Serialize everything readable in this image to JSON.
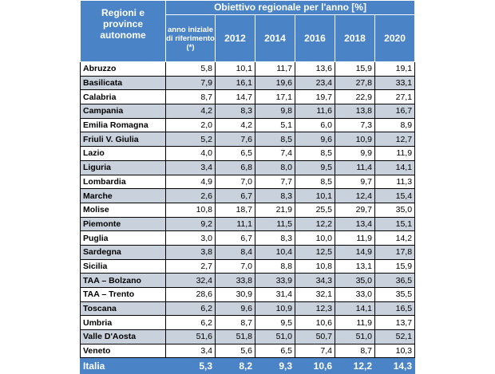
{
  "header": {
    "region_label": "Regioni e province autonome",
    "objective_label": "Obiettivo regionale per l'anno  [%]",
    "base_label": "anno iniziale di riferimento (*)",
    "years": [
      "2012",
      "2014",
      "2016",
      "2018",
      "2020"
    ]
  },
  "colors": {
    "header_bg": "#4a84c7",
    "alt_row_bg": "#c8d1dc",
    "total_bg": "#4a84c7"
  },
  "rows": [
    {
      "region": "Abruzzo",
      "values": [
        "5,8",
        "10,1",
        "11,7",
        "13,6",
        "15,9",
        "19,1"
      ]
    },
    {
      "region": "Basilicata",
      "values": [
        "7,9",
        "16,1",
        "19,6",
        "23,4",
        "27,8",
        "33,1"
      ]
    },
    {
      "region": "Calabria",
      "values": [
        "8,7",
        "14,7",
        "17,1",
        "19,7",
        "22,9",
        "27,1"
      ]
    },
    {
      "region": "Campania",
      "values": [
        "4,2",
        "8,3",
        "9,8",
        "11,6",
        "13,8",
        "16,7"
      ]
    },
    {
      "region": "Emilia Romagna",
      "values": [
        "2,0",
        "4,2",
        "5,1",
        "6,0",
        "7,3",
        "8,9"
      ]
    },
    {
      "region": "Friuli V. Giulia",
      "values": [
        "5,2",
        "7,6",
        "8,5",
        "9,6",
        "10,9",
        "12,7"
      ]
    },
    {
      "region": "Lazio",
      "values": [
        "4,0",
        "6,5",
        "7,4",
        "8,5",
        "9,9",
        "11,9"
      ]
    },
    {
      "region": "Liguria",
      "values": [
        "3,4",
        "6,8",
        "8,0",
        "9,5",
        "11,4",
        "14,1"
      ]
    },
    {
      "region": "Lombardia",
      "values": [
        "4,9",
        "7,0",
        "7,7",
        "8,5",
        "9,7",
        "11,3"
      ]
    },
    {
      "region": "Marche",
      "values": [
        "2,6",
        "6,7",
        "8,3",
        "10,1",
        "12,4",
        "15,4"
      ]
    },
    {
      "region": "Molise",
      "values": [
        "10,8",
        "18,7",
        "21,9",
        "25,5",
        "29,7",
        "35,0"
      ]
    },
    {
      "region": "Piemonte",
      "values": [
        "9,2",
        "11,1",
        "11,5",
        "12,2",
        "13,4",
        "15,1"
      ]
    },
    {
      "region": "Puglia",
      "values": [
        "3,0",
        "6,7",
        "8,3",
        "10,0",
        "11,9",
        "14,2"
      ]
    },
    {
      "region": "Sardegna",
      "values": [
        "3,8",
        "8,4",
        "10,4",
        "12,5",
        "14,9",
        "17,8"
      ]
    },
    {
      "region": "Sicilia",
      "values": [
        "2,7",
        "7,0",
        "8,8",
        "10,8",
        "13,1",
        "15,9"
      ]
    },
    {
      "region": "TAA – Bolzano",
      "values": [
        "32,4",
        "33,8",
        "33,9",
        "34,3",
        "35,0",
        "36,5"
      ]
    },
    {
      "region": "TAA – Trento",
      "values": [
        "28,6",
        "30,9",
        "31,4",
        "32,1",
        "33,0",
        "35,5"
      ]
    },
    {
      "region": "Toscana",
      "values": [
        "6,2",
        "9,6",
        "10,9",
        "12,3",
        "14,1",
        "16,5"
      ]
    },
    {
      "region": "Umbria",
      "values": [
        "6,2",
        "8,7",
        "9,5",
        "10,6",
        "11,9",
        "13,7"
      ]
    },
    {
      "region": "Valle D'Aosta",
      "values": [
        "51,6",
        "51,8",
        "51,0",
        "50,7",
        "51,0",
        "52,1"
      ]
    },
    {
      "region": "Veneto",
      "values": [
        "3,4",
        "5,6",
        "6,5",
        "7,4",
        "8,7",
        "10,3"
      ]
    }
  ],
  "total": {
    "region": "Italia",
    "values": [
      "5,3",
      "8,2",
      "9,3",
      "10,6",
      "12,2",
      "14,3"
    ]
  }
}
